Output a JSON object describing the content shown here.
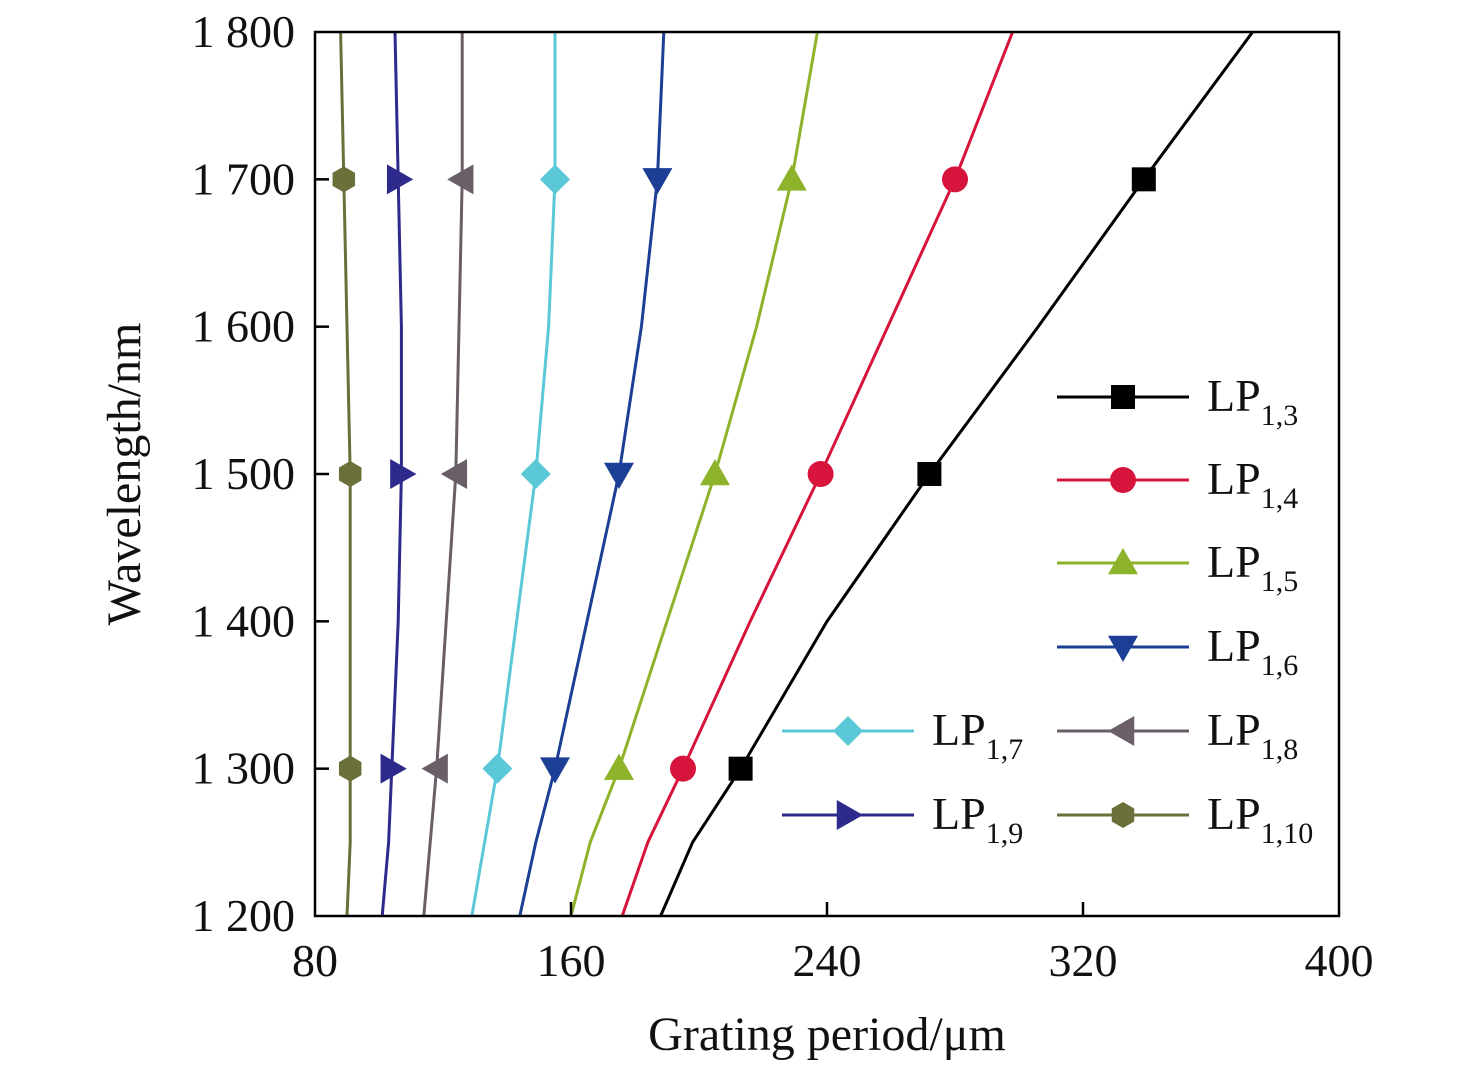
{
  "chart_data": {
    "type": "line",
    "xlabel": "Grating period/μm",
    "ylabel": "Wavelength/nm",
    "xlim": [
      80,
      400
    ],
    "ylim": [
      1200,
      1800
    ],
    "xticks": [
      "80",
      "160",
      "240",
      "320",
      "400"
    ],
    "yticks": [
      "1 200",
      "1 300",
      "1 400",
      "1 500",
      "1 600",
      "1 700",
      "1 800"
    ],
    "legend_placement": "right",
    "series": [
      {
        "name": "LP1,3",
        "label_main": "LP",
        "label_sub": "1,3",
        "color": "#000000",
        "marker": "square",
        "curve": [
          [
            188,
            1200
          ],
          [
            198,
            1250
          ],
          [
            213,
            1300
          ],
          [
            240,
            1400
          ],
          [
            272,
            1500
          ],
          [
            306,
            1600
          ],
          [
            339,
            1700
          ],
          [
            373,
            1800
          ]
        ],
        "markers": [
          [
            213,
            1300
          ],
          [
            272,
            1500
          ],
          [
            339,
            1700
          ]
        ]
      },
      {
        "name": "LP1,4",
        "label_main": "LP",
        "label_sub": "1,4",
        "color": "#d6143c",
        "marker": "circle",
        "curve": [
          [
            176,
            1200
          ],
          [
            184,
            1250
          ],
          [
            195,
            1300
          ],
          [
            216,
            1400
          ],
          [
            238,
            1500
          ],
          [
            259,
            1600
          ],
          [
            280,
            1700
          ],
          [
            298,
            1800
          ]
        ],
        "markers": [
          [
            195,
            1300
          ],
          [
            238,
            1500
          ],
          [
            280,
            1700
          ]
        ]
      },
      {
        "name": "LP1,5",
        "label_main": "LP",
        "label_sub": "1,5",
        "color": "#8db32a",
        "marker": "triangle-up",
        "curve": [
          [
            160,
            1200
          ],
          [
            166,
            1250
          ],
          [
            175,
            1300
          ],
          [
            190,
            1400
          ],
          [
            205,
            1500
          ],
          [
            218,
            1600
          ],
          [
            229,
            1700
          ],
          [
            237,
            1800
          ]
        ],
        "markers": [
          [
            175,
            1300
          ],
          [
            205,
            1500
          ],
          [
            229,
            1700
          ]
        ]
      },
      {
        "name": "LP1,6",
        "label_main": "LP",
        "label_sub": "1,6",
        "color": "#1c3f95",
        "marker": "triangle-down",
        "curve": [
          [
            144,
            1200
          ],
          [
            149,
            1250
          ],
          [
            155,
            1300
          ],
          [
            165,
            1400
          ],
          [
            175,
            1500
          ],
          [
            182,
            1600
          ],
          [
            187,
            1700
          ],
          [
            189,
            1800
          ]
        ],
        "markers": [
          [
            155,
            1300
          ],
          [
            175,
            1500
          ],
          [
            187,
            1700
          ]
        ]
      },
      {
        "name": "LP1,7",
        "label_main": "LP",
        "label_sub": "1,7",
        "color": "#5bc8d8",
        "marker": "diamond",
        "curve": [
          [
            129,
            1200
          ],
          [
            133,
            1250
          ],
          [
            137,
            1300
          ],
          [
            143,
            1400
          ],
          [
            149,
            1500
          ],
          [
            153,
            1600
          ],
          [
            155,
            1700
          ],
          [
            155,
            1800
          ]
        ],
        "markers": [
          [
            137,
            1300
          ],
          [
            149,
            1500
          ],
          [
            155,
            1700
          ]
        ]
      },
      {
        "name": "LP1,8",
        "label_main": "LP",
        "label_sub": "1,8",
        "color": "#6a5e68",
        "marker": "triangle-left",
        "curve": [
          [
            114,
            1200
          ],
          [
            116,
            1250
          ],
          [
            118,
            1300
          ],
          [
            121,
            1400
          ],
          [
            124,
            1500
          ],
          [
            125,
            1600
          ],
          [
            126,
            1700
          ],
          [
            126,
            1800
          ]
        ],
        "markers": [
          [
            118,
            1300
          ],
          [
            124,
            1500
          ],
          [
            126,
            1700
          ]
        ]
      },
      {
        "name": "LP1,9",
        "label_main": "LP",
        "label_sub": "1,9",
        "color": "#2d2a8c",
        "marker": "triangle-right",
        "curve": [
          [
            101,
            1200
          ],
          [
            103,
            1250
          ],
          [
            104,
            1300
          ],
          [
            106,
            1400
          ],
          [
            107,
            1500
          ],
          [
            107,
            1600
          ],
          [
            106,
            1700
          ],
          [
            105,
            1800
          ]
        ],
        "markers": [
          [
            104,
            1300
          ],
          [
            107,
            1500
          ],
          [
            106,
            1700
          ]
        ]
      },
      {
        "name": "LP1,10",
        "label_main": "LP",
        "label_sub": "1,10",
        "color": "#6b6f3a",
        "marker": "hexagon",
        "curve": [
          [
            90,
            1200
          ],
          [
            91,
            1250
          ],
          [
            91,
            1300
          ],
          [
            91,
            1400
          ],
          [
            91,
            1500
          ],
          [
            90,
            1600
          ],
          [
            89,
            1700
          ],
          [
            88,
            1800
          ]
        ],
        "markers": [
          [
            91,
            1300
          ],
          [
            91,
            1500
          ],
          [
            89,
            1700
          ]
        ]
      }
    ]
  }
}
